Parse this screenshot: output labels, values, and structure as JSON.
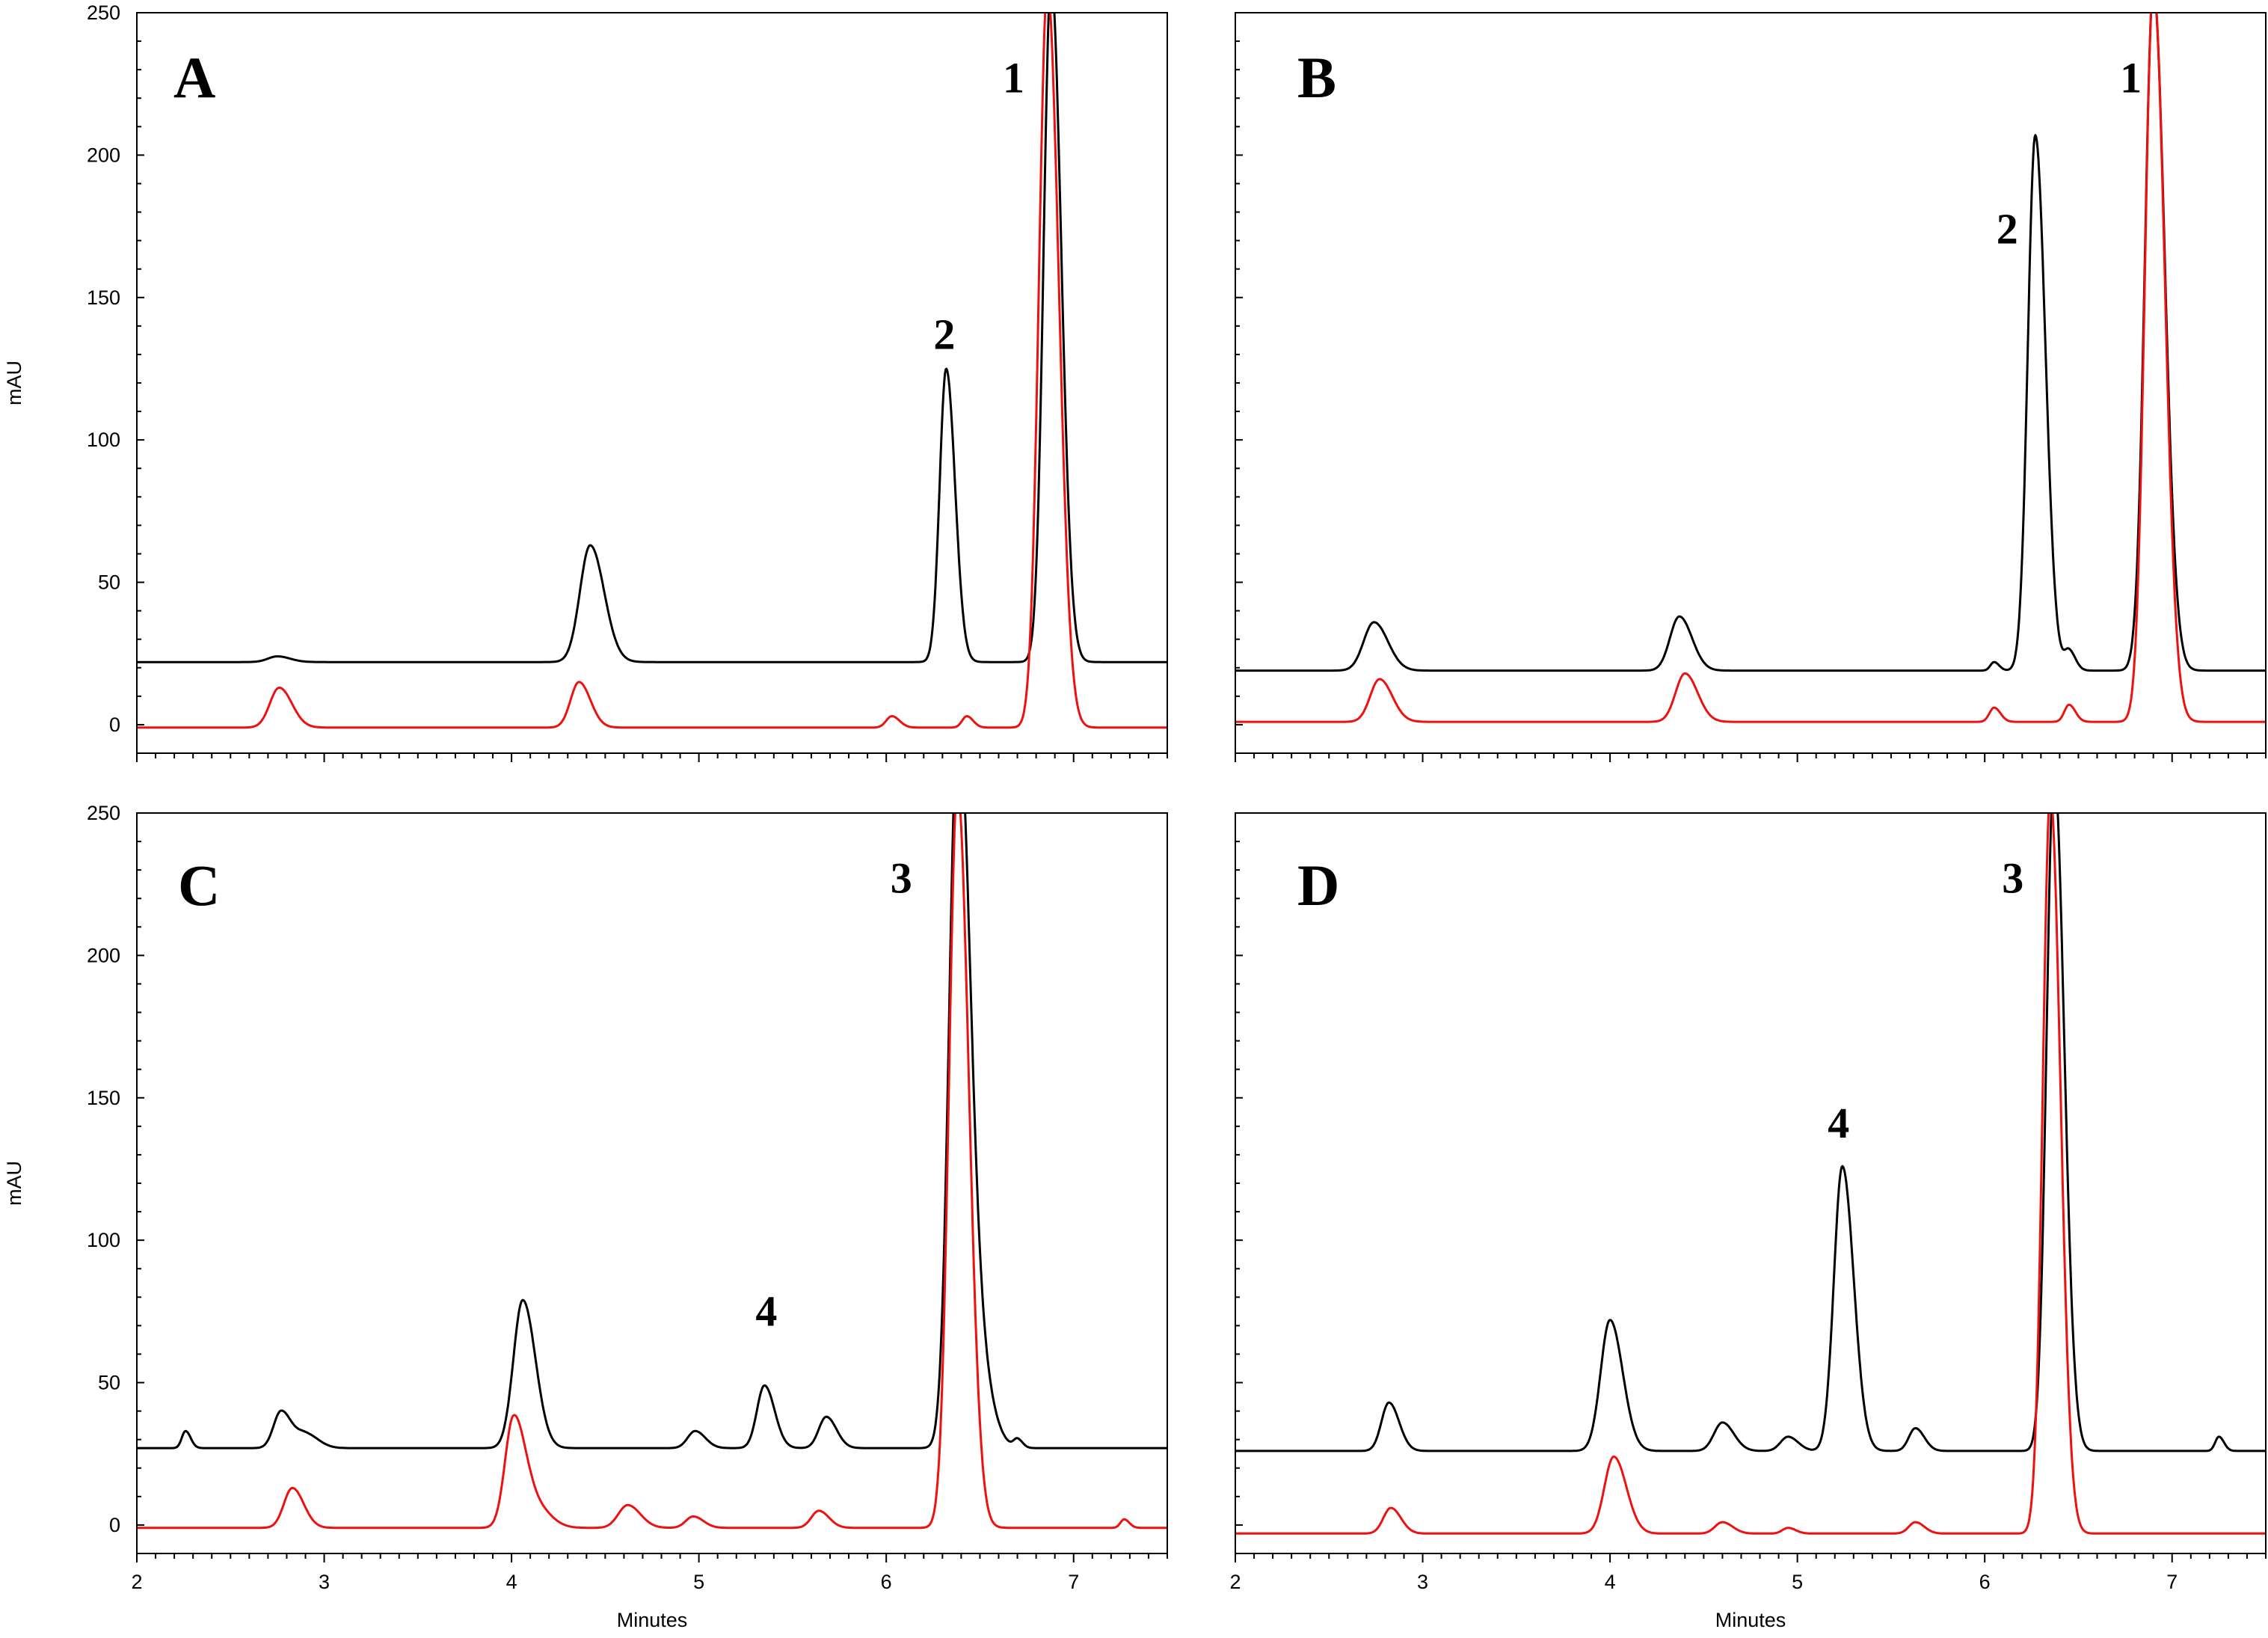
{
  "colors": {
    "black_trace": "#000000",
    "red_trace": "#ee1111",
    "frame": "#000000"
  },
  "chart_data": [
    {
      "type": "line",
      "panel": "A",
      "panel_label": "A",
      "xlabel": "",
      "ylabel": "mAU",
      "xlim": [
        2,
        7.5
      ],
      "ylim": [
        -10,
        250
      ],
      "xticks": [
        "",
        "",
        "",
        "",
        "",
        ""
      ],
      "yticks": [
        "0",
        "50",
        "100",
        "150",
        "200",
        "250"
      ],
      "peak_labels": [
        {
          "text": "2",
          "x": 6.31,
          "y": 132
        },
        {
          "text": "1",
          "x": 6.68,
          "y": 222
        }
      ],
      "series": [
        {
          "color": "black",
          "baseline": 22,
          "peaks": [
            [
              2.75,
              2,
              0.05
            ],
            [
              4.42,
              41,
              0.055
            ],
            [
              6.32,
              103,
              0.035
            ],
            [
              6.88,
              240,
              0.04
            ]
          ],
          "points": [
            [
              2,
              22
            ],
            [
              2.7,
              22
            ],
            [
              2.75,
              24
            ],
            [
              2.8,
              22
            ],
            [
              4.3,
              22
            ],
            [
              4.42,
              63
            ],
            [
              4.55,
              23
            ],
            [
              6.25,
              22
            ],
            [
              6.32,
              125
            ],
            [
              6.4,
              22
            ],
            [
              6.82,
              22
            ],
            [
              6.88,
              262
            ],
            [
              7.0,
              22
            ],
            [
              7.5,
              22
            ]
          ]
        },
        {
          "color": "red",
          "baseline": -1,
          "peaks": [
            [
              2.76,
              14,
              0.05
            ],
            [
              4.36,
              16,
              0.045
            ],
            [
              6.03,
              4,
              0.03
            ],
            [
              6.43,
              4,
              0.025
            ],
            [
              6.86,
              260,
              0.045
            ]
          ],
          "points": [
            [
              2,
              -1
            ],
            [
              2.7,
              -1
            ],
            [
              2.76,
              13
            ],
            [
              2.85,
              -1
            ],
            [
              4.3,
              -1
            ],
            [
              4.36,
              15
            ],
            [
              4.45,
              -1
            ],
            [
              6.0,
              0
            ],
            [
              6.03,
              3
            ],
            [
              6.43,
              3
            ],
            [
              6.8,
              -1
            ],
            [
              6.86,
              259
            ],
            [
              7.0,
              -1
            ],
            [
              7.5,
              -1
            ]
          ]
        }
      ]
    },
    {
      "type": "line",
      "panel": "B",
      "panel_label": "B",
      "xlabel": "",
      "ylabel": "",
      "xlim": [
        2,
        7.5
      ],
      "ylim": [
        -10,
        250
      ],
      "xticks": [
        "",
        "",
        "",
        "",
        "",
        ""
      ],
      "yticks": [
        "",
        "",
        "",
        "",
        "",
        ""
      ],
      "peak_labels": [
        {
          "text": "2",
          "x": 6.12,
          "y": 169
        },
        {
          "text": "1",
          "x": 6.78,
          "y": 222
        }
      ],
      "series": [
        {
          "color": "black",
          "baseline": 19,
          "peaks": [
            [
              2.74,
              17,
              0.055
            ],
            [
              4.37,
              19,
              0.05
            ],
            [
              6.05,
              3,
              0.02
            ],
            [
              6.27,
              188,
              0.04
            ],
            [
              6.45,
              7,
              0.025
            ],
            [
              6.9,
              240,
              0.045
            ]
          ],
          "points": [
            [
              2,
              19
            ],
            [
              2.74,
              36
            ],
            [
              4.37,
              38
            ],
            [
              6.27,
              207
            ],
            [
              6.45,
              26
            ],
            [
              6.9,
              261
            ],
            [
              7.5,
              20
            ]
          ]
        },
        {
          "color": "red",
          "baseline": 1,
          "peaks": [
            [
              2.77,
              15,
              0.05
            ],
            [
              4.4,
              17,
              0.05
            ],
            [
              6.05,
              5,
              0.025
            ],
            [
              6.45,
              6,
              0.025
            ],
            [
              6.9,
              260,
              0.045
            ]
          ],
          "points": [
            [
              2,
              1
            ],
            [
              2.77,
              15
            ],
            [
              4.4,
              17
            ],
            [
              6.05,
              5
            ],
            [
              6.45,
              6
            ],
            [
              6.9,
              261
            ],
            [
              7.5,
              1
            ]
          ]
        }
      ]
    },
    {
      "type": "line",
      "panel": "C",
      "panel_label": "C",
      "xlabel": "Minutes",
      "ylabel": "mAU",
      "xlim": [
        2,
        7.5
      ],
      "ylim": [
        -10,
        250
      ],
      "xticks": [
        "2",
        "3",
        "4",
        "5",
        "6",
        "7"
      ],
      "yticks": [
        "0",
        "50",
        "100",
        "150",
        "200",
        "250"
      ],
      "peak_labels": [
        {
          "text": "4",
          "x": 5.36,
          "y": 70
        },
        {
          "text": "3",
          "x": 6.08,
          "y": 222
        }
      ],
      "series": [
        {
          "color": "black",
          "baseline": 27,
          "peaks": [
            [
              2.26,
              6,
              0.02
            ],
            [
              2.77,
              13,
              0.04
            ],
            [
              2.9,
              5,
              0.05
            ],
            [
              4.06,
              52,
              0.05
            ],
            [
              4.98,
              6,
              0.04
            ],
            [
              5.35,
              22,
              0.04
            ],
            [
              5.68,
              11,
              0.04
            ],
            [
              6.38,
              240,
              0.045
            ],
            [
              6.46,
              40,
              0.06
            ],
            [
              6.7,
              3,
              0.02
            ]
          ],
          "points": [
            [
              2,
              27
            ],
            [
              2.26,
              33
            ],
            [
              2.77,
              40
            ],
            [
              4.06,
              80
            ],
            [
              4.98,
              33
            ],
            [
              5.35,
              49
            ],
            [
              5.68,
              38
            ],
            [
              6.38,
              260
            ],
            [
              6.7,
              30
            ],
            [
              7.5,
              30
            ]
          ]
        },
        {
          "color": "red",
          "baseline": -1,
          "peaks": [
            [
              2.83,
              14,
              0.045
            ],
            [
              4.01,
              38,
              0.045
            ],
            [
              4.12,
              8,
              0.06
            ],
            [
              4.62,
              8,
              0.05
            ],
            [
              4.97,
              4,
              0.04
            ],
            [
              5.64,
              6,
              0.04
            ],
            [
              6.38,
              260,
              0.045
            ],
            [
              7.27,
              3,
              0.02
            ]
          ],
          "points": [
            [
              2,
              -1
            ],
            [
              2.83,
              13
            ],
            [
              4.01,
              37
            ],
            [
              4.62,
              7
            ],
            [
              4.97,
              3
            ],
            [
              5.64,
              5
            ],
            [
              6.38,
              259
            ],
            [
              7.27,
              2
            ],
            [
              7.5,
              3
            ]
          ]
        }
      ]
    },
    {
      "type": "line",
      "panel": "D",
      "panel_label": "D",
      "xlabel": "Minutes",
      "ylabel": "",
      "xlim": [
        2,
        7.5
      ],
      "ylim": [
        -10,
        250
      ],
      "xticks": [
        "2",
        "3",
        "4",
        "5",
        "6",
        "7"
      ],
      "yticks": [
        "",
        "",
        "",
        "",
        "",
        ""
      ],
      "peak_labels": [
        {
          "text": "4",
          "x": 5.22,
          "y": 136
        },
        {
          "text": "3",
          "x": 6.15,
          "y": 222
        }
      ],
      "series": [
        {
          "color": "black",
          "baseline": 26,
          "peaks": [
            [
              2.82,
              17,
              0.04
            ],
            [
              4.0,
              46,
              0.05
            ],
            [
              4.6,
              10,
              0.045
            ],
            [
              4.95,
              5,
              0.04
            ],
            [
              5.24,
              100,
              0.045
            ],
            [
              5.63,
              8,
              0.035
            ],
            [
              6.37,
              240,
              0.04
            ],
            [
              7.25,
              5,
              0.02
            ]
          ],
          "points": [
            [
              2,
              26
            ],
            [
              2.82,
              43
            ],
            [
              4.0,
              72
            ],
            [
              4.6,
              36
            ],
            [
              4.95,
              31
            ],
            [
              5.24,
              126
            ],
            [
              5.63,
              34
            ],
            [
              6.37,
              260
            ],
            [
              7.25,
              31
            ],
            [
              7.5,
              30
            ]
          ]
        },
        {
          "color": "red",
          "baseline": -3,
          "peaks": [
            [
              2.83,
              9,
              0.04
            ],
            [
              4.02,
              27,
              0.05
            ],
            [
              4.6,
              4,
              0.04
            ],
            [
              4.95,
              2,
              0.03
            ],
            [
              5.63,
              4,
              0.035
            ],
            [
              6.35,
              260,
              0.04
            ]
          ],
          "points": [
            [
              2,
              -3
            ],
            [
              2.83,
              6
            ],
            [
              4.02,
              24
            ],
            [
              4.6,
              1
            ],
            [
              5.63,
              1
            ],
            [
              6.35,
              257
            ],
            [
              7.5,
              -1
            ]
          ]
        }
      ]
    }
  ]
}
